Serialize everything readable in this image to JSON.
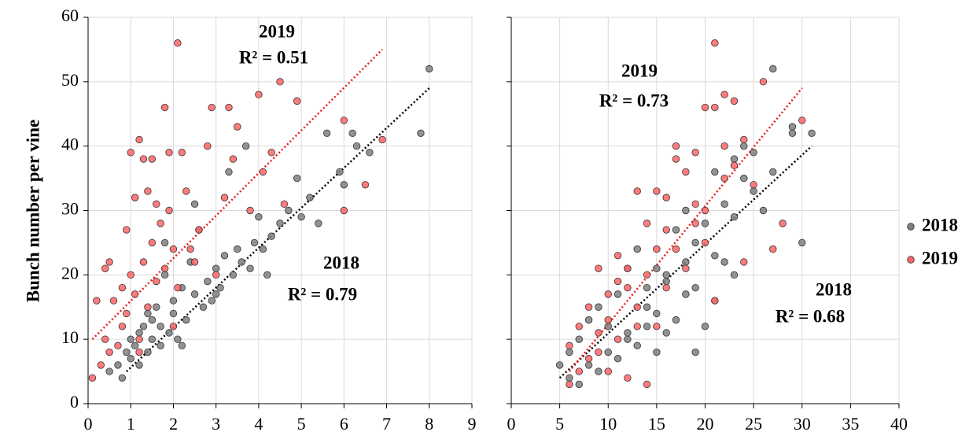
{
  "chart_data": [
    {
      "type": "scatter",
      "ylabel": "Bunch number per vine",
      "xlim": [
        0,
        9
      ],
      "xticks": [
        0,
        1,
        2,
        3,
        4,
        5,
        6,
        7,
        8,
        9
      ],
      "ylim": [
        0,
        60
      ],
      "yticks": [
        0,
        10,
        20,
        30,
        40,
        50,
        60
      ],
      "ytick_labels": true,
      "grid": true,
      "annotations": [
        "2019",
        "R² = 0.51",
        "2018",
        "R² = 0.79"
      ],
      "series": [
        {
          "name": "2018",
          "color": "#7f7f7f",
          "trend_color": "#000000",
          "x": [
            0.5,
            0.7,
            0.8,
            0.9,
            1.0,
            1.0,
            1.1,
            1.2,
            1.2,
            1.3,
            1.4,
            1.4,
            1.5,
            1.5,
            1.6,
            1.7,
            1.7,
            1.8,
            1.9,
            2.0,
            2.0,
            2.1,
            2.2,
            2.3,
            2.4,
            2.5,
            2.6,
            2.7,
            2.8,
            2.9,
            3.0,
            3.1,
            3.2,
            3.3,
            3.4,
            3.5,
            3.6,
            3.7,
            3.8,
            3.9,
            4.0,
            4.1,
            4.2,
            4.3,
            4.5,
            4.7,
            4.9,
            5.0,
            5.2,
            5.4,
            5.6,
            5.9,
            6.0,
            6.2,
            6.3,
            6.6,
            7.8,
            8.0,
            2.2,
            2.5,
            3.0,
            1.8
          ],
          "values": [
            5,
            6,
            4,
            8,
            7,
            10,
            9,
            11,
            6,
            12,
            8,
            14,
            10,
            13,
            15,
            9,
            12,
            20,
            11,
            16,
            14,
            10,
            18,
            13,
            22,
            17,
            27,
            15,
            19,
            16,
            21,
            18,
            23,
            36,
            20,
            24,
            22,
            40,
            21,
            25,
            29,
            24,
            20,
            26,
            28,
            30,
            35,
            29,
            32,
            28,
            42,
            36,
            34,
            42,
            40,
            39,
            42,
            52,
            9,
            31,
            17,
            25
          ],
          "trendline": {
            "x": [
              0.9,
              8.0
            ],
            "y": [
              5,
              49
            ]
          }
        },
        {
          "name": "2019",
          "color": "#ff6464",
          "trend_color": "#ee1c1c",
          "x": [
            0.1,
            0.2,
            0.3,
            0.4,
            0.4,
            0.5,
            0.5,
            0.6,
            0.7,
            0.8,
            0.8,
            0.9,
            0.9,
            1.0,
            1.0,
            1.1,
            1.1,
            1.2,
            1.2,
            1.3,
            1.3,
            1.4,
            1.4,
            1.5,
            1.5,
            1.6,
            1.6,
            1.7,
            1.8,
            1.8,
            1.9,
            1.9,
            2.0,
            2.1,
            2.1,
            2.2,
            2.3,
            2.4,
            2.5,
            2.6,
            2.8,
            2.9,
            3.0,
            3.2,
            3.3,
            3.4,
            3.5,
            3.8,
            4.0,
            4.1,
            4.3,
            4.5,
            4.6,
            4.9,
            6.0,
            6.0,
            6.5,
            6.9,
            1.2,
            2.0
          ],
          "values": [
            4,
            16,
            6,
            21,
            10,
            22,
            8,
            16,
            9,
            18,
            12,
            27,
            14,
            39,
            20,
            17,
            32,
            41,
            10,
            38,
            22,
            33,
            15,
            38,
            25,
            31,
            19,
            28,
            46,
            21,
            39,
            30,
            24,
            56,
            18,
            39,
            33,
            24,
            22,
            27,
            40,
            46,
            20,
            32,
            46,
            38,
            43,
            30,
            48,
            36,
            39,
            50,
            31,
            47,
            44,
            30,
            34,
            41,
            8,
            12
          ],
          "trendline": {
            "x": [
              0.1,
              6.9
            ],
            "y": [
              10,
              55
            ]
          }
        }
      ]
    },
    {
      "type": "scatter",
      "xlim": [
        0,
        40
      ],
      "xticks": [
        0,
        5,
        10,
        15,
        20,
        25,
        30,
        35,
        40
      ],
      "ylim": [
        0,
        60
      ],
      "yticks": [
        0,
        10,
        20,
        30,
        40,
        50,
        60
      ],
      "ytick_labels": false,
      "grid": true,
      "legend": "right",
      "annotations": [
        "2019",
        "R² = 0.73",
        "2018",
        "R² = 0.68"
      ],
      "series": [
        {
          "name": "2018",
          "color": "#7f7f7f",
          "trend_color": "#000000",
          "x": [
            5,
            6,
            6,
            7,
            7,
            8,
            8,
            9,
            9,
            10,
            10,
            11,
            11,
            12,
            12,
            13,
            13,
            14,
            14,
            15,
            15,
            15,
            16,
            16,
            17,
            17,
            18,
            18,
            19,
            19,
            20,
            20,
            21,
            21,
            22,
            22,
            23,
            23,
            24,
            24,
            25,
            25,
            26,
            27,
            27,
            29,
            29,
            30,
            31,
            12,
            14,
            16,
            18,
            21,
            19,
            23
          ],
          "values": [
            6,
            4,
            8,
            3,
            10,
            6,
            13,
            5,
            15,
            8,
            12,
            7,
            17,
            10,
            21,
            9,
            24,
            12,
            18,
            8,
            14,
            21,
            11,
            20,
            13,
            27,
            17,
            30,
            8,
            25,
            12,
            28,
            16,
            36,
            22,
            31,
            20,
            38,
            35,
            40,
            33,
            39,
            30,
            36,
            52,
            43,
            42,
            25,
            42,
            11,
            15,
            19,
            22,
            23,
            18,
            29
          ],
          "trendline": {
            "x": [
              5,
              31
            ],
            "y": [
              4,
              40
            ]
          }
        },
        {
          "name": "2019",
          "color": "#ff6464",
          "trend_color": "#ee1c1c",
          "x": [
            6,
            6,
            7,
            7,
            8,
            8,
            9,
            9,
            10,
            10,
            11,
            11,
            12,
            12,
            13,
            13,
            14,
            14,
            14,
            15,
            15,
            16,
            16,
            17,
            17,
            18,
            18,
            19,
            19,
            20,
            20,
            21,
            21,
            21,
            22,
            22,
            23,
            23,
            24,
            24,
            25,
            26,
            27,
            28,
            30,
            10,
            12,
            13,
            15,
            16,
            17,
            19,
            20,
            22,
            11,
            9
          ],
          "values": [
            3,
            9,
            5,
            12,
            7,
            15,
            8,
            21,
            5,
            17,
            10,
            23,
            4,
            21,
            12,
            33,
            3,
            20,
            28,
            12,
            33,
            18,
            32,
            24,
            40,
            21,
            36,
            31,
            39,
            25,
            30,
            56,
            16,
            46,
            35,
            48,
            37,
            47,
            22,
            41,
            34,
            50,
            24,
            28,
            44,
            13,
            18,
            15,
            24,
            27,
            38,
            28,
            46,
            40,
            19,
            11
          ],
          "trendline": {
            "x": [
              6,
              30
            ],
            "y": [
              5,
              49
            ]
          }
        }
      ]
    }
  ]
}
